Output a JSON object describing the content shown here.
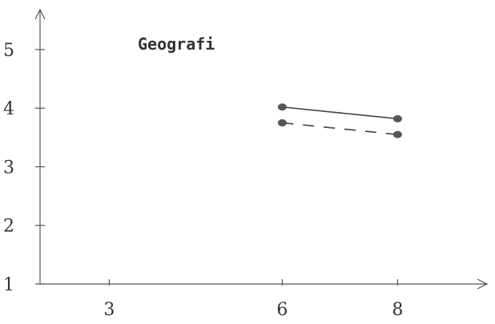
{
  "chart_data": {
    "type": "line",
    "title": "Geografi",
    "xlabel": "",
    "ylabel": "",
    "xlim": [
      1.8,
      9.3
    ],
    "ylim": [
      1,
      5.6
    ],
    "xticks": [
      3,
      6,
      8
    ],
    "yticks": [
      1,
      2,
      3,
      4,
      5
    ],
    "grid": false,
    "series": [
      {
        "style": "solid",
        "x": [
          6,
          8
        ],
        "values": [
          4.02,
          3.82
        ]
      },
      {
        "style": "dashed",
        "x": [
          6,
          8
        ],
        "values": [
          3.75,
          3.55
        ]
      }
    ]
  }
}
